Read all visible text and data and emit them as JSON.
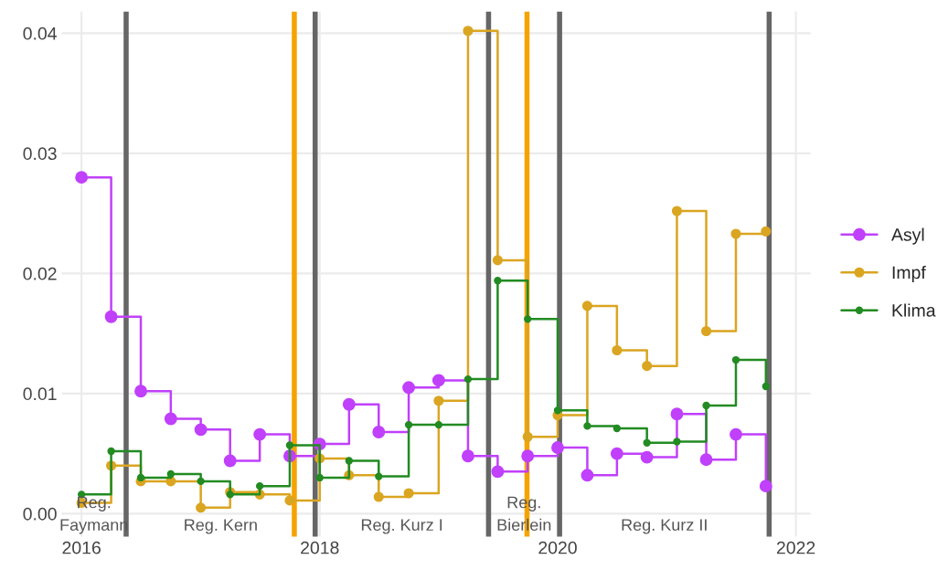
{
  "chart_data": {
    "type": "step",
    "marker": "circle",
    "line_style": "solid",
    "grid": true,
    "legend": "right",
    "x": [
      "2016-01",
      "2016-04",
      "2016-07",
      "2016-10",
      "2017-01",
      "2017-04",
      "2017-07",
      "2017-10",
      "2018-01",
      "2018-04",
      "2018-07",
      "2018-10",
      "2019-01",
      "2019-04",
      "2019-07",
      "2019-10",
      "2020-01",
      "2020-04",
      "2020-07",
      "2020-10",
      "2021-01",
      "2021-04",
      "2021-07",
      "2021-10"
    ],
    "series": [
      {
        "name": "Asyl",
        "color": "#c040fb",
        "values": [
          0.028,
          0.0164,
          0.0102,
          0.0079,
          0.007,
          0.0044,
          0.0066,
          0.0048,
          0.0058,
          0.0091,
          0.0068,
          0.0105,
          0.0111,
          0.0048,
          0.0035,
          0.0048,
          0.0055,
          0.0032,
          0.005,
          0.0047,
          0.0083,
          0.0045,
          0.0066,
          0.0023
        ]
      },
      {
        "name": "Impf",
        "color": "#daa520",
        "values": [
          0.0009,
          0.004,
          0.0027,
          0.0027,
          0.0005,
          0.0018,
          0.0016,
          0.0011,
          0.0046,
          0.0032,
          0.0014,
          0.0017,
          0.0094,
          0.0402,
          0.0211,
          0.0064,
          0.0082,
          0.0173,
          0.0136,
          0.0123,
          0.0252,
          0.0152,
          0.0233,
          0.0235
        ]
      },
      {
        "name": "Klima",
        "color": "#228b22",
        "values": [
          0.0016,
          0.0052,
          0.003,
          0.0033,
          0.0027,
          0.0016,
          0.0023,
          0.0057,
          0.003,
          0.0044,
          0.0031,
          0.0074,
          0.0074,
          0.0112,
          0.0194,
          0.0162,
          0.0086,
          0.0073,
          0.0071,
          0.0059,
          0.006,
          0.009,
          0.0128,
          0.0106
        ]
      }
    ],
    "xlim": [
      "2015-11-01",
      "2022-02-15"
    ],
    "xticks": [
      {
        "value": "2016-01-01",
        "label": "2016"
      },
      {
        "value": "2018-01-01",
        "label": "2018"
      },
      {
        "value": "2020-01-01",
        "label": "2020"
      },
      {
        "value": "2022-01-01",
        "label": "2022"
      }
    ],
    "ylim": [
      -0.0019,
      0.0418
    ],
    "yticks": [
      {
        "value": 0,
        "label": "0.00"
      },
      {
        "value": 0.01,
        "label": "0.01"
      },
      {
        "value": 0.02,
        "label": "0.02"
      },
      {
        "value": 0.03,
        "label": "0.03"
      },
      {
        "value": 0.04,
        "label": "0.04"
      }
    ],
    "ref_lines": [
      {
        "axis": "x",
        "value": "2016-05-17",
        "color": "#666666"
      },
      {
        "axis": "x",
        "value": "2017-10-15",
        "color": "#f5a300"
      },
      {
        "axis": "x",
        "value": "2017-12-18",
        "color": "#666666"
      },
      {
        "axis": "x",
        "value": "2019-06-03",
        "color": "#666666"
      },
      {
        "axis": "x",
        "value": "2019-09-29",
        "color": "#f5a300"
      },
      {
        "axis": "x",
        "value": "2020-01-07",
        "color": "#666666"
      },
      {
        "axis": "x",
        "value": "2021-10-11",
        "color": "#666666"
      }
    ],
    "annotations": [
      "Reg.\nFaymann",
      "Reg. Kern",
      "Reg. Kurz I",
      "Reg.\nBierlein",
      "Reg. Kurz II"
    ]
  }
}
